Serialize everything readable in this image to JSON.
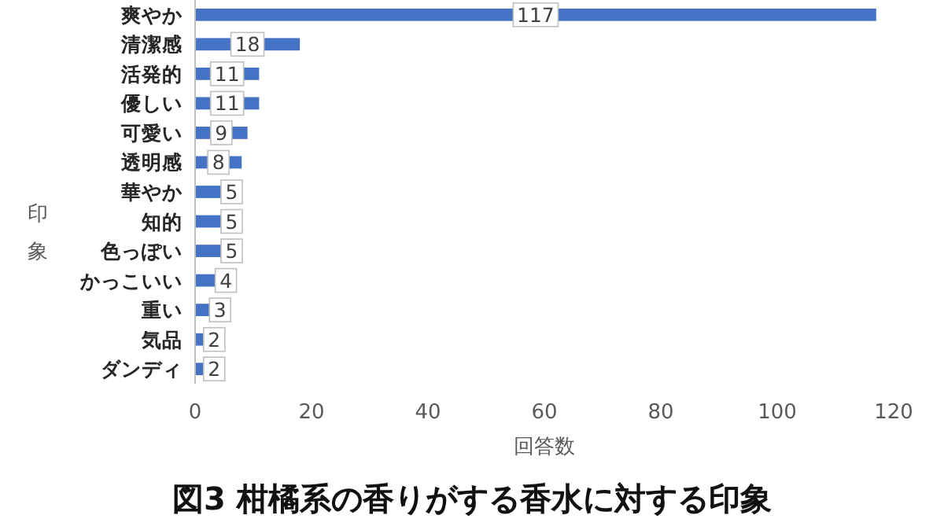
{
  "chart_data": {
    "type": "bar",
    "orientation": "horizontal",
    "title": "図3 柑橘系の香りがする香水に対する印象",
    "xlabel": "回答数",
    "ylabel": "印象",
    "categories": [
      "爽やか",
      "清潔感",
      "活発的",
      "優しい",
      "可愛い",
      "透明感",
      "華やか",
      "知的",
      "色っぽい",
      "かっこいい",
      "重い",
      "気品",
      "ダンディ"
    ],
    "values": [
      117,
      18,
      11,
      11,
      9,
      8,
      5,
      5,
      5,
      4,
      3,
      2,
      2
    ],
    "color": "#4472c4",
    "xlim": [
      0,
      120
    ],
    "xticks": [
      0,
      20,
      40,
      60,
      80,
      100,
      120
    ],
    "data_labels": true,
    "grid": false
  }
}
